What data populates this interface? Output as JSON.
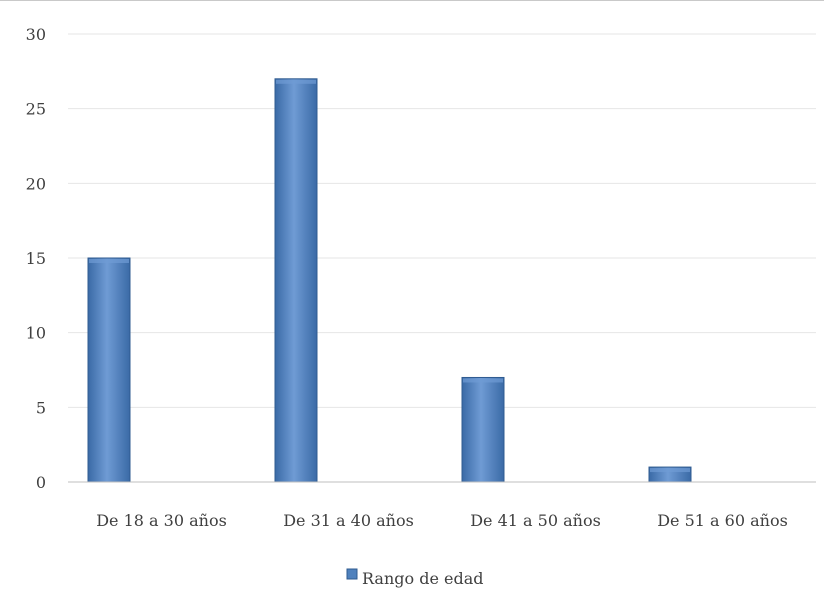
{
  "chart_data": {
    "type": "bar",
    "title": "",
    "xlabel": "",
    "ylabel": "",
    "categories": [
      "De 18 a 30 años",
      "De 31 a 40 años",
      "De 41 a 50 años",
      "De 51 a 60 años"
    ],
    "series": [
      {
        "name": "Rango de edad",
        "values": [
          15,
          27,
          7,
          1
        ]
      }
    ],
    "ylim": [
      0,
      30
    ],
    "yticks": [
      0,
      5,
      10,
      15,
      20,
      25,
      30
    ],
    "grid": true,
    "legend_position": "bottom",
    "colors": {
      "bar_fill": "#4f81bd",
      "bar_light": "#6f9bd4",
      "bar_dark": "#3a6aa6",
      "bar_edge": "#2f5b90",
      "grid": "#e6e6e6",
      "axis": "#bfbfbf"
    }
  }
}
